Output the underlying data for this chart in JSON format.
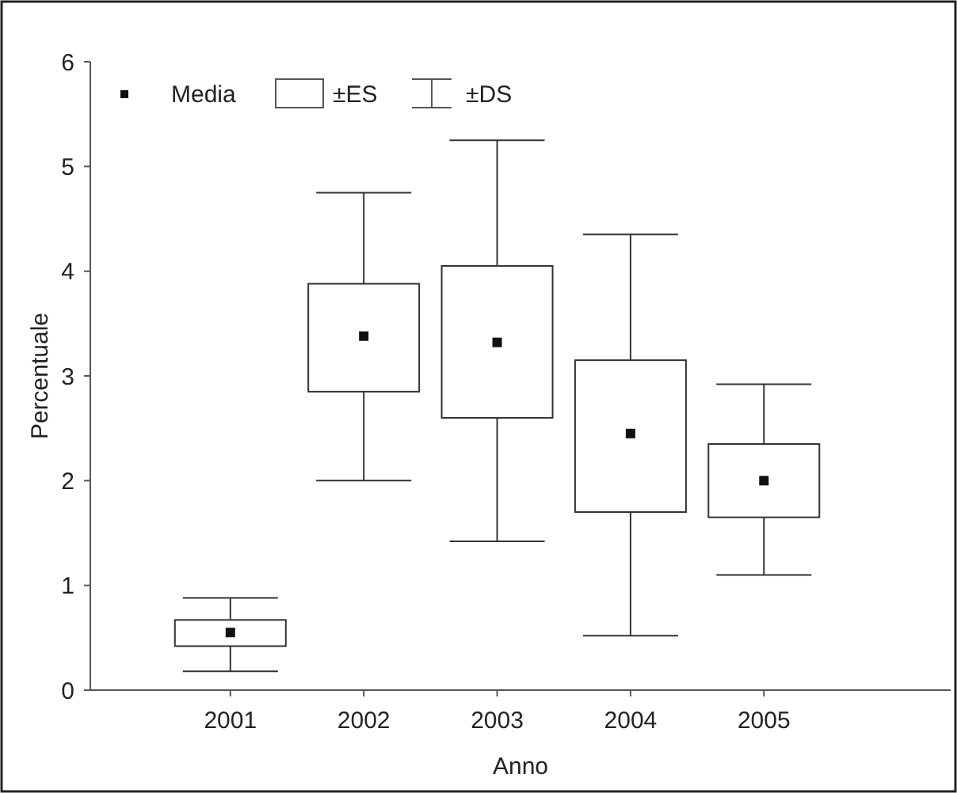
{
  "chart_data": {
    "type": "box",
    "xlabel": "Anno",
    "ylabel": "Percentuale",
    "categories": [
      "2001",
      "2002",
      "2003",
      "2004",
      "2005"
    ],
    "boxes": [
      {
        "low": 0.18,
        "q1": 0.42,
        "median": 0.55,
        "q3": 0.67,
        "high": 0.88
      },
      {
        "low": 2.0,
        "q1": 2.85,
        "median": 3.38,
        "q3": 3.88,
        "high": 4.75
      },
      {
        "low": 1.42,
        "q1": 2.6,
        "median": 3.32,
        "q3": 4.05,
        "high": 5.25
      },
      {
        "low": 0.52,
        "q1": 1.7,
        "median": 2.45,
        "q3": 3.15,
        "high": 4.35
      },
      {
        "low": 1.1,
        "q1": 1.65,
        "median": 2.0,
        "q3": 2.35,
        "high": 2.92
      }
    ],
    "color": "#333333",
    "ylim": [
      0,
      6
    ],
    "yticks": [
      0,
      1,
      2,
      3,
      4,
      5,
      6
    ],
    "annotations": [
      "Media",
      "±ES",
      "±DS"
    ]
  }
}
